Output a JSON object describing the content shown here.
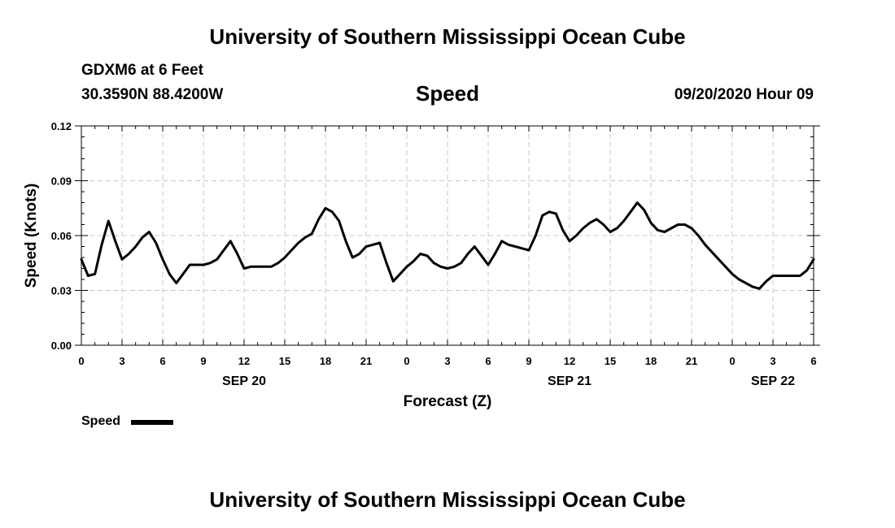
{
  "header": {
    "title": "University of Southern Mississippi Ocean Cube",
    "station": "GDXM6 at 6 Feet",
    "coords": "30.3590N 88.4200W",
    "plot_title": "Speed",
    "datetime": "09/20/2020 Hour 09"
  },
  "footer": {
    "title": "University of Southern Mississippi Ocean Cube"
  },
  "legend": {
    "label": "Speed"
  },
  "colors": {
    "line": "#000000",
    "grid": "#c8c8c8"
  },
  "chart_data": {
    "type": "line",
    "title": "Speed",
    "xlabel": "Forecast (Z)",
    "ylabel": "Speed (Knots)",
    "ylim": [
      0,
      0.12
    ],
    "xlim": [
      0,
      54
    ],
    "yticks": [
      0.0,
      0.03,
      0.06,
      0.09,
      0.12
    ],
    "ytick_labels": [
      "0.00",
      "0.03",
      "0.06",
      "0.09",
      "0.12"
    ],
    "xtick_hours": [
      0,
      3,
      6,
      9,
      12,
      15,
      18,
      21,
      24,
      27,
      30,
      33,
      36,
      39,
      42,
      45,
      48,
      51,
      54
    ],
    "xtick_labels": [
      "0",
      "3",
      "6",
      "9",
      "12",
      "15",
      "18",
      "21",
      "0",
      "3",
      "6",
      "9",
      "12",
      "15",
      "18",
      "21",
      "0",
      "3",
      "6"
    ],
    "date_labels": [
      {
        "hour": 12,
        "label": "SEP 20"
      },
      {
        "hour": 36,
        "label": "SEP 21"
      },
      {
        "hour": 51,
        "label": "SEP 22"
      }
    ],
    "grid": true,
    "series": [
      {
        "name": "Speed",
        "x": [
          0,
          0.5,
          1,
          1.5,
          2,
          2.5,
          3,
          3.5,
          4,
          4.5,
          5,
          5.5,
          6,
          6.5,
          7,
          7.5,
          8,
          8.5,
          9,
          9.5,
          10,
          10.5,
          11,
          11.5,
          12,
          12.5,
          13,
          13.5,
          14,
          14.5,
          15,
          15.5,
          16,
          16.5,
          17,
          17.5,
          18,
          18.5,
          19,
          19.5,
          20,
          20.5,
          21,
          21.5,
          22,
          22.5,
          23,
          23.5,
          24,
          24.5,
          25,
          25.5,
          26,
          26.5,
          27,
          27.5,
          28,
          28.5,
          29,
          29.5,
          30,
          30.5,
          31,
          31.5,
          32,
          32.5,
          33,
          33.5,
          34,
          34.5,
          35,
          35.5,
          36,
          36.5,
          37,
          37.5,
          38,
          38.5,
          39,
          39.5,
          40,
          40.5,
          41,
          41.5,
          42,
          42.5,
          43,
          43.5,
          44,
          44.5,
          45,
          45.5,
          46,
          46.5,
          47,
          47.5,
          48,
          48.5,
          49,
          49.5,
          50,
          50.5,
          51,
          51.5,
          52,
          52.5,
          53,
          53.5,
          54
        ],
        "values": [
          0.047,
          0.038,
          0.039,
          0.055,
          0.068,
          0.057,
          0.047,
          0.05,
          0.054,
          0.059,
          0.062,
          0.056,
          0.047,
          0.039,
          0.034,
          0.039,
          0.044,
          0.044,
          0.044,
          0.045,
          0.047,
          0.052,
          0.057,
          0.05,
          0.042,
          0.043,
          0.043,
          0.043,
          0.043,
          0.045,
          0.048,
          0.052,
          0.056,
          0.059,
          0.061,
          0.069,
          0.075,
          0.073,
          0.068,
          0.057,
          0.048,
          0.05,
          0.054,
          0.055,
          0.056,
          0.045,
          0.035,
          0.039,
          0.043,
          0.046,
          0.05,
          0.049,
          0.045,
          0.043,
          0.042,
          0.043,
          0.045,
          0.05,
          0.054,
          0.049,
          0.044,
          0.05,
          0.057,
          0.055,
          0.054,
          0.053,
          0.052,
          0.06,
          0.071,
          0.073,
          0.072,
          0.063,
          0.057,
          0.06,
          0.064,
          0.067,
          0.069,
          0.066,
          0.062,
          0.064,
          0.068,
          0.073,
          0.078,
          0.074,
          0.067,
          0.063,
          0.062,
          0.064,
          0.066,
          0.066,
          0.064,
          0.06,
          0.055,
          0.051,
          0.047,
          0.043,
          0.039,
          0.036,
          0.034,
          0.032,
          0.031,
          0.035,
          0.038,
          0.038,
          0.038,
          0.038,
          0.038,
          0.041,
          0.047
        ]
      }
    ]
  }
}
